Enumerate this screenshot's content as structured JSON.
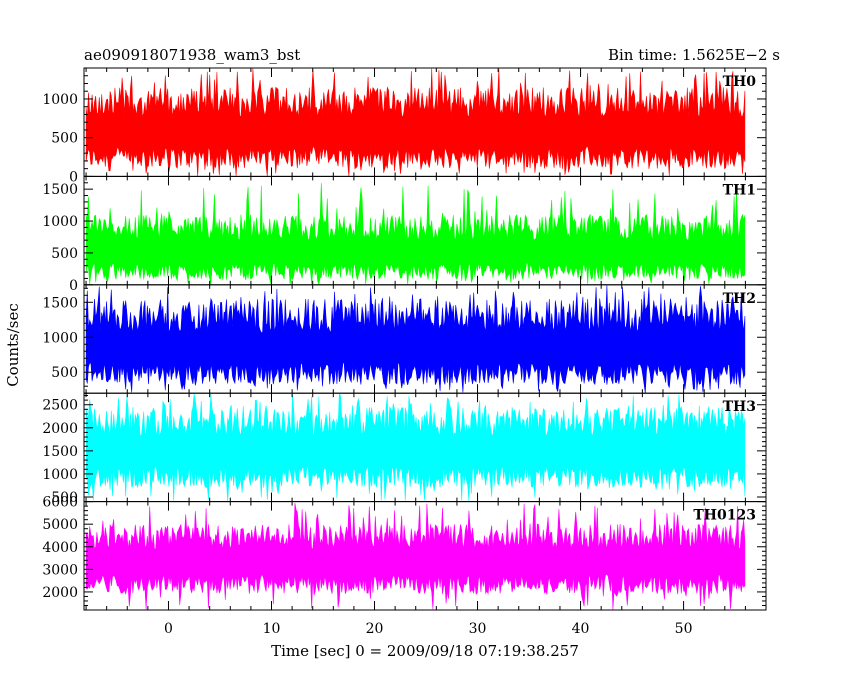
{
  "header": {
    "title": "ae090918071938_wam3_bst",
    "bin_time": "Bin time: 1.5625E−2 s"
  },
  "chart_data": {
    "type": "line",
    "xlabel": "Time [sec] 0 = 2009/09/18 07:19:38.257",
    "ylabel": "Counts/sec",
    "xlim": [
      -8.2,
      58
    ],
    "x_ticks": [
      0,
      10,
      20,
      30,
      40,
      50
    ],
    "data_x_range": [
      -8,
      56
    ],
    "panels": [
      {
        "name": "TH0",
        "color": "#ff0000",
        "ylim": [
          0,
          1400
        ],
        "y_ticks": [
          0,
          500,
          1000
        ],
        "band": {
          "low": 100,
          "mean": 620,
          "high": 1150,
          "min": 0,
          "max": 1400
        }
      },
      {
        "name": "TH1",
        "color": "#00ff00",
        "ylim": [
          0,
          1700
        ],
        "y_ticks": [
          0,
          500,
          1000,
          1500
        ],
        "band": {
          "low": 80,
          "mean": 560,
          "high": 1100,
          "min": 0,
          "max": 1600
        }
      },
      {
        "name": "TH2",
        "color": "#0000ff",
        "ylim": [
          200,
          1750
        ],
        "y_ticks": [
          500,
          1000,
          1500
        ],
        "band": {
          "low": 320,
          "mean": 900,
          "high": 1550,
          "min": 200,
          "max": 1750
        }
      },
      {
        "name": "TH3",
        "color": "#00ffff",
        "ylim": [
          400,
          2750
        ],
        "y_ticks": [
          500,
          1000,
          1500,
          2000,
          2500
        ],
        "band": {
          "low": 700,
          "mean": 1580,
          "high": 2450,
          "min": 400,
          "max": 2750
        }
      },
      {
        "name": "TH0123",
        "color": "#ff00ff",
        "ylim": [
          1200,
          6000
        ],
        "y_ticks": [
          2000,
          3000,
          4000,
          5000,
          6000
        ],
        "band": {
          "low": 1900,
          "mean": 3500,
          "high": 5000,
          "min": 1200,
          "max": 6000
        }
      }
    ]
  }
}
